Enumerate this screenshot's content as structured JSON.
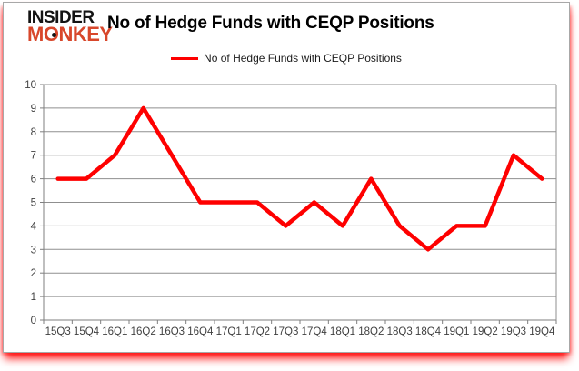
{
  "logo": {
    "line1": "INSIDER",
    "line2": "MONKEY"
  },
  "header": {
    "title": "No of Hedge Funds with CEQP Positions"
  },
  "legend": {
    "label": "No of Hedge Funds with CEQP Positions"
  },
  "colors": {
    "series": "#fe0000",
    "grid": "#8f8f8f",
    "axis": "#7f7f7f",
    "tick_text": "#404040",
    "frame_border": "#a8a8a8",
    "logo_black": "#141414",
    "logo_red": "#d8472b",
    "shadow_red": "#ff0000",
    "background": "#ffffff"
  },
  "chart_data": {
    "type": "line",
    "title": "No of Hedge Funds with CEQP Positions",
    "categories": [
      "15Q3",
      "15Q4",
      "16Q1",
      "16Q2",
      "16Q3",
      "16Q4",
      "17Q1",
      "17Q2",
      "17Q3",
      "17Q4",
      "18Q1",
      "18Q2",
      "18Q3",
      "18Q4",
      "19Q1",
      "19Q2",
      "19Q3",
      "19Q4"
    ],
    "series": [
      {
        "name": "No of Hedge Funds with CEQP Positions",
        "color": "#fe0000",
        "values": [
          6,
          6,
          7,
          9,
          7,
          5,
          5,
          5,
          4,
          5,
          4,
          6,
          4,
          3,
          4,
          4,
          7,
          6
        ]
      }
    ],
    "xlabel": "",
    "ylabel": "",
    "ylim": [
      0,
      10
    ],
    "ytick_interval": 1,
    "grid": "horizontal",
    "legend_position": "top-center"
  }
}
